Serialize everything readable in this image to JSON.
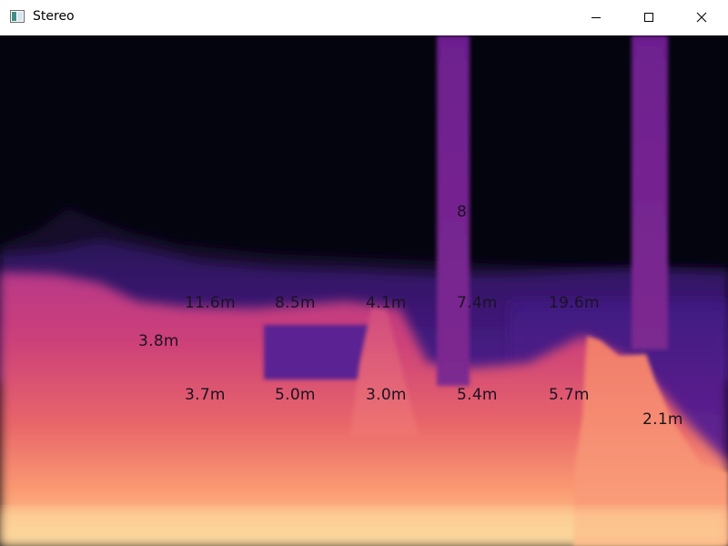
{
  "window": {
    "title": "Stereo",
    "controls": [
      "minimize-icon",
      "maximize-icon",
      "close-icon"
    ]
  },
  "depth_map": {
    "colormap": "magma",
    "colors": {
      "far": "#05040f",
      "mid": "#4b1d8c",
      "near": "#d8457a",
      "closest": "#fde0a0"
    },
    "labels": {
      "row1": [
        "",
        "",
        "",
        "8",
        ""
      ],
      "row2": [
        "11.6m",
        "8.5m",
        "4.1m",
        "7.4m",
        "19.6m"
      ],
      "left": "3.8m",
      "row3": [
        "3.7m",
        "5.0m",
        "3.0m",
        "5.4m",
        "5.7m"
      ],
      "right": "2.1m"
    }
  }
}
